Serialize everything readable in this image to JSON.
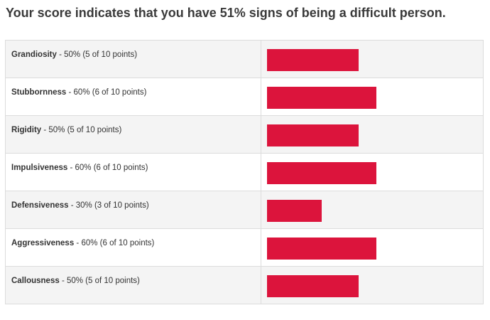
{
  "headline": "Your score indicates that you have 51% signs of being a difficult person.",
  "bar_color": "#dc143c",
  "results": [
    {
      "trait": "Grandiosity",
      "detail": " - 50% (5 of 10 points)",
      "percent": 50
    },
    {
      "trait": "Stubbornness",
      "detail": " - 60% (6 of 10 points)",
      "percent": 60
    },
    {
      "trait": "Rigidity",
      "detail": " - 50% (5 of 10 points)",
      "percent": 50
    },
    {
      "trait": "Impulsiveness",
      "detail": " - 60% (6 of 10 points)",
      "percent": 60
    },
    {
      "trait": "Defensiveness",
      "detail": " - 30% (3 of 10 points)",
      "percent": 30
    },
    {
      "trait": "Aggressiveness",
      "detail": " - 60% (6 of 10 points)",
      "percent": 60
    },
    {
      "trait": "Callousness",
      "detail": " - 50% (5 of 10 points)",
      "percent": 50
    }
  ]
}
